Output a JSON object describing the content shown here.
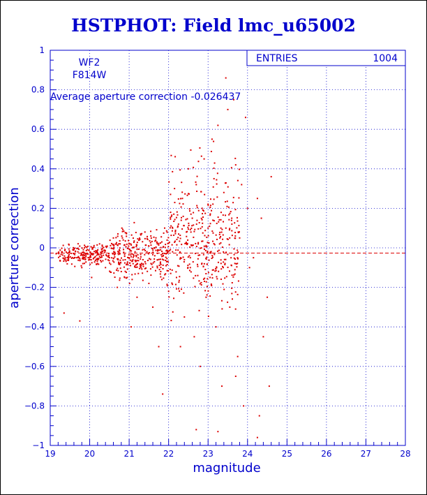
{
  "chart_data": {
    "type": "scatter",
    "title": "HSTPHOT: Field lmc_u65002",
    "xlabel": "magnitude",
    "ylabel": "aperture correction",
    "xlim": [
      19,
      28
    ],
    "ylim": [
      -1,
      1
    ],
    "xticks": [
      "19",
      "20",
      "21",
      "22",
      "23",
      "24",
      "25",
      "26",
      "27",
      "28"
    ],
    "yticks": [
      "-1",
      "-0.8",
      "-0.6",
      "-0.4",
      "-0.2",
      "0",
      "0.2",
      "0.4",
      "0.6",
      "0.8",
      "1"
    ],
    "grid": true,
    "stats_box": {
      "label": "ENTRIES",
      "value": "1004",
      "placement": "top-right"
    },
    "annotations": {
      "camera": "WF2",
      "filter": "F814W",
      "average_text": "Average aperture correction -0.026437"
    },
    "average_line": -0.026437,
    "point_color": "#dd0000",
    "axis_color": "#0000cc",
    "points": [
      [
        19.15,
        -0.03
      ],
      [
        19.3,
        -0.02
      ],
      [
        19.35,
        -0.33
      ],
      [
        19.45,
        -0.05
      ],
      [
        19.6,
        -0.03
      ],
      [
        19.7,
        -0.02
      ],
      [
        19.75,
        -0.37
      ],
      [
        19.8,
        -0.1
      ],
      [
        19.9,
        -0.03
      ],
      [
        20.0,
        -0.06
      ],
      [
        20.05,
        -0.15
      ],
      [
        20.1,
        -0.03
      ],
      [
        20.2,
        -0.08
      ],
      [
        20.25,
        0.02
      ],
      [
        20.3,
        -0.04
      ],
      [
        20.4,
        -0.1
      ],
      [
        20.5,
        -0.05
      ],
      [
        20.6,
        0.05
      ],
      [
        20.65,
        -0.03
      ],
      [
        20.7,
        -0.2
      ],
      [
        20.75,
        -0.01
      ],
      [
        20.8,
        -0.12
      ],
      [
        20.85,
        0.04
      ],
      [
        20.9,
        -0.06
      ],
      [
        20.95,
        -0.15
      ],
      [
        21.0,
        0.02
      ],
      [
        21.05,
        -0.4
      ],
      [
        21.1,
        -0.08
      ],
      [
        21.15,
        -0.02
      ],
      [
        21.2,
        -0.25
      ],
      [
        21.25,
        0.04
      ],
      [
        21.3,
        -0.1
      ],
      [
        21.35,
        -0.06
      ],
      [
        21.4,
        0.08
      ],
      [
        21.45,
        -0.02
      ],
      [
        21.5,
        -0.18
      ],
      [
        21.55,
        0.06
      ],
      [
        21.6,
        -0.3
      ],
      [
        21.65,
        -0.04
      ],
      [
        21.7,
        0.03
      ],
      [
        21.75,
        -0.5
      ],
      [
        21.8,
        -0.12
      ],
      [
        21.85,
        -0.03
      ],
      [
        21.9,
        0.1
      ],
      [
        21.95,
        -0.07
      ],
      [
        22.0,
        -0.22
      ],
      [
        22.05,
        0.18
      ],
      [
        22.1,
        -0.02
      ],
      [
        22.15,
        0.3
      ],
      [
        22.2,
        -0.15
      ],
      [
        22.25,
        0.12
      ],
      [
        22.3,
        -0.05
      ],
      [
        22.35,
        0.25
      ],
      [
        22.4,
        -0.35
      ],
      [
        22.45,
        0.08
      ],
      [
        22.5,
        0.4
      ],
      [
        22.55,
        -0.1
      ],
      [
        22.6,
        0.15
      ],
      [
        22.65,
        -0.45
      ],
      [
        22.7,
        0.32
      ],
      [
        22.75,
        0.02
      ],
      [
        22.8,
        -0.6
      ],
      [
        22.85,
        0.2
      ],
      [
        22.9,
        0.45
      ],
      [
        22.95,
        -0.25
      ],
      [
        23.0,
        0.1
      ],
      [
        23.05,
        -0.15
      ],
      [
        23.1,
        0.55
      ],
      [
        23.15,
        0.35
      ],
      [
        23.2,
        -0.4
      ],
      [
        23.25,
        0.62
      ],
      [
        23.3,
        0.05
      ],
      [
        23.35,
        -0.7
      ],
      [
        23.4,
        0.28
      ],
      [
        23.45,
        0.86
      ],
      [
        23.5,
        0.7
      ],
      [
        23.55,
        -0.3
      ],
      [
        23.6,
        0.15
      ],
      [
        23.65,
        0.75
      ],
      [
        23.7,
        0.42
      ],
      [
        23.75,
        -0.55
      ],
      [
        23.8,
        0.05
      ],
      [
        23.85,
        0.32
      ],
      [
        23.9,
        -0.8
      ],
      [
        23.95,
        0.66
      ],
      [
        24.0,
        0.2
      ],
      [
        24.05,
        -0.1
      ],
      [
        24.1,
        0.95
      ],
      [
        24.15,
        -0.05
      ],
      [
        24.2,
        0.98
      ],
      [
        24.25,
        0.25
      ],
      [
        24.3,
        -0.85
      ],
      [
        24.35,
        0.15
      ],
      [
        24.4,
        -0.45
      ],
      [
        24.5,
        -0.25
      ],
      [
        24.55,
        -0.7
      ],
      [
        24.6,
        0.36
      ],
      [
        23.25,
        -0.93
      ],
      [
        22.7,
        -0.92
      ],
      [
        24.25,
        -0.96
      ],
      [
        21.85,
        -0.74
      ],
      [
        22.3,
        -0.5
      ],
      [
        23.7,
        -0.65
      ],
      [
        22.55,
        -0.05
      ]
    ],
    "series": [
      {
        "values": "points"
      }
    ]
  }
}
